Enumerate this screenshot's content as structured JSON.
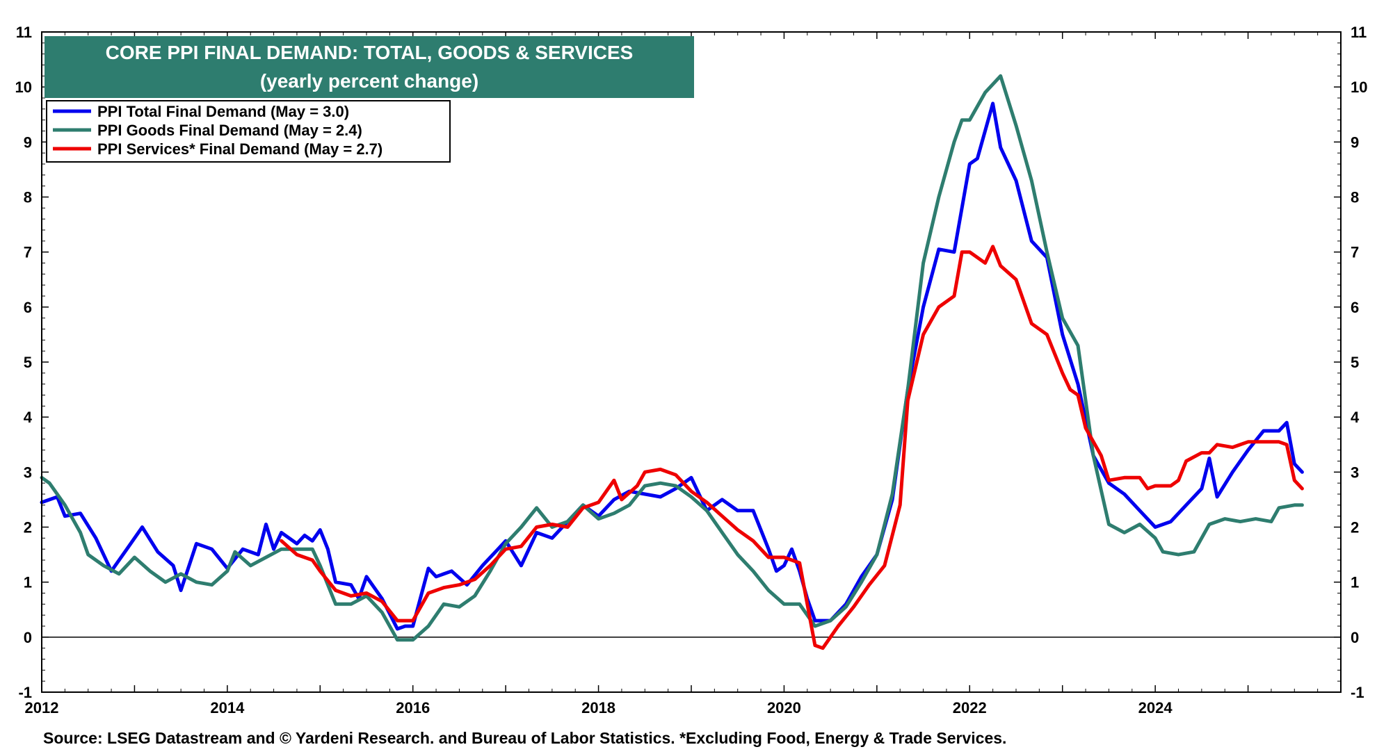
{
  "chart_data": {
    "type": "line",
    "title": "CORE PPI FINAL DEMAND: TOTAL, GOODS & SERVICES",
    "subtitle": "(yearly percent change)",
    "source": "Source: LSEG Datastream and © Yardeni Research. and Bureau of Labor Statistics. *Excluding Food, Energy & Trade Services.",
    "xlim": [
      2012,
      2026
    ],
    "ylim": [
      -1,
      11
    ],
    "x_ticks": [
      2012,
      2014,
      2016,
      2018,
      2020,
      2022,
      2024
    ],
    "x_tick_labels": [
      "2012",
      "2014",
      "2016",
      "2018",
      "2020",
      "2022",
      "2024"
    ],
    "y_ticks": [
      -1,
      0,
      1,
      2,
      3,
      4,
      5,
      6,
      7,
      8,
      9,
      10,
      11
    ],
    "y_tick_labels": [
      "-1",
      "0",
      "1",
      "2",
      "3",
      "4",
      "5",
      "6",
      "7",
      "8",
      "9",
      "10",
      "11"
    ],
    "reference_line": 0,
    "legend_position": "top-left",
    "title_box_color": "#2e7d6f",
    "series": [
      {
        "name": "PPI Total Final Demand (May = 3.0)",
        "color": "#0000ee",
        "points": [
          [
            2012.0,
            2.45
          ],
          [
            2012.167,
            2.55
          ],
          [
            2012.25,
            2.2
          ],
          [
            2012.417,
            2.25
          ],
          [
            2012.583,
            1.8
          ],
          [
            2012.75,
            1.2
          ],
          [
            2012.917,
            1.6
          ],
          [
            2013.083,
            2.0
          ],
          [
            2013.25,
            1.55
          ],
          [
            2013.417,
            1.3
          ],
          [
            2013.5,
            0.85
          ],
          [
            2013.667,
            1.7
          ],
          [
            2013.833,
            1.6
          ],
          [
            2014.0,
            1.25
          ],
          [
            2014.167,
            1.6
          ],
          [
            2014.333,
            1.5
          ],
          [
            2014.417,
            2.05
          ],
          [
            2014.5,
            1.6
          ],
          [
            2014.583,
            1.9
          ],
          [
            2014.75,
            1.7
          ],
          [
            2014.833,
            1.85
          ],
          [
            2014.917,
            1.75
          ],
          [
            2015.0,
            1.95
          ],
          [
            2015.083,
            1.6
          ],
          [
            2015.167,
            1.0
          ],
          [
            2015.333,
            0.95
          ],
          [
            2015.417,
            0.7
          ],
          [
            2015.5,
            1.1
          ],
          [
            2015.667,
            0.7
          ],
          [
            2015.833,
            0.15
          ],
          [
            2015.917,
            0.2
          ],
          [
            2016.0,
            0.2
          ],
          [
            2016.167,
            1.25
          ],
          [
            2016.25,
            1.1
          ],
          [
            2016.417,
            1.2
          ],
          [
            2016.583,
            0.95
          ],
          [
            2016.75,
            1.3
          ],
          [
            2016.917,
            1.6
          ],
          [
            2017.0,
            1.75
          ],
          [
            2017.167,
            1.3
          ],
          [
            2017.333,
            1.9
          ],
          [
            2017.5,
            1.8
          ],
          [
            2017.667,
            2.1
          ],
          [
            2017.833,
            2.4
          ],
          [
            2018.0,
            2.2
          ],
          [
            2018.167,
            2.5
          ],
          [
            2018.333,
            2.65
          ],
          [
            2018.5,
            2.6
          ],
          [
            2018.667,
            2.55
          ],
          [
            2018.833,
            2.7
          ],
          [
            2019.0,
            2.9
          ],
          [
            2019.167,
            2.3
          ],
          [
            2019.333,
            2.5
          ],
          [
            2019.5,
            2.3
          ],
          [
            2019.667,
            2.3
          ],
          [
            2019.833,
            1.6
          ],
          [
            2019.917,
            1.2
          ],
          [
            2020.0,
            1.3
          ],
          [
            2020.083,
            1.6
          ],
          [
            2020.167,
            1.2
          ],
          [
            2020.25,
            0.7
          ],
          [
            2020.333,
            0.3
          ],
          [
            2020.5,
            0.3
          ],
          [
            2020.667,
            0.6
          ],
          [
            2020.833,
            1.1
          ],
          [
            2021.0,
            1.5
          ],
          [
            2021.167,
            2.5
          ],
          [
            2021.333,
            4.5
          ],
          [
            2021.5,
            6.0
          ],
          [
            2021.667,
            7.05
          ],
          [
            2021.833,
            7.0
          ],
          [
            2022.0,
            8.6
          ],
          [
            2022.083,
            8.7
          ],
          [
            2022.25,
            9.7
          ],
          [
            2022.333,
            8.9
          ],
          [
            2022.5,
            8.3
          ],
          [
            2022.667,
            7.2
          ],
          [
            2022.833,
            6.9
          ],
          [
            2023.0,
            5.5
          ],
          [
            2023.167,
            4.6
          ],
          [
            2023.333,
            3.3
          ],
          [
            2023.5,
            2.8
          ],
          [
            2023.667,
            2.6
          ],
          [
            2023.833,
            2.3
          ],
          [
            2024.0,
            2.0
          ],
          [
            2024.167,
            2.1
          ],
          [
            2024.333,
            2.4
          ],
          [
            2024.5,
            2.7
          ],
          [
            2024.583,
            3.25
          ],
          [
            2024.667,
            2.55
          ],
          [
            2024.833,
            3.0
          ],
          [
            2025.0,
            3.4
          ],
          [
            2025.167,
            3.75
          ],
          [
            2025.333,
            3.75
          ],
          [
            2025.417,
            3.9
          ],
          [
            2025.5,
            3.15
          ],
          [
            2025.583,
            3.0
          ]
        ]
      },
      {
        "name": "PPI Goods Final Demand (May = 2.4)",
        "color": "#2e7d6f",
        "points": [
          [
            2012.0,
            2.9
          ],
          [
            2012.083,
            2.8
          ],
          [
            2012.25,
            2.4
          ],
          [
            2012.417,
            1.9
          ],
          [
            2012.5,
            1.5
          ],
          [
            2012.667,
            1.3
          ],
          [
            2012.833,
            1.15
          ],
          [
            2013.0,
            1.45
          ],
          [
            2013.167,
            1.2
          ],
          [
            2013.333,
            1.0
          ],
          [
            2013.5,
            1.15
          ],
          [
            2013.667,
            1.0
          ],
          [
            2013.833,
            0.95
          ],
          [
            2014.0,
            1.2
          ],
          [
            2014.083,
            1.55
          ],
          [
            2014.25,
            1.3
          ],
          [
            2014.417,
            1.45
          ],
          [
            2014.583,
            1.6
          ],
          [
            2014.75,
            1.6
          ],
          [
            2014.917,
            1.6
          ],
          [
            2015.0,
            1.3
          ],
          [
            2015.167,
            0.6
          ],
          [
            2015.333,
            0.6
          ],
          [
            2015.5,
            0.75
          ],
          [
            2015.667,
            0.45
          ],
          [
            2015.833,
            -0.05
          ],
          [
            2016.0,
            -0.05
          ],
          [
            2016.167,
            0.2
          ],
          [
            2016.333,
            0.6
          ],
          [
            2016.5,
            0.55
          ],
          [
            2016.667,
            0.75
          ],
          [
            2016.833,
            1.2
          ],
          [
            2017.0,
            1.7
          ],
          [
            2017.167,
            2.0
          ],
          [
            2017.333,
            2.35
          ],
          [
            2017.5,
            2.0
          ],
          [
            2017.667,
            2.1
          ],
          [
            2017.833,
            2.4
          ],
          [
            2018.0,
            2.15
          ],
          [
            2018.167,
            2.25
          ],
          [
            2018.333,
            2.4
          ],
          [
            2018.5,
            2.75
          ],
          [
            2018.667,
            2.8
          ],
          [
            2018.833,
            2.75
          ],
          [
            2019.0,
            2.55
          ],
          [
            2019.167,
            2.3
          ],
          [
            2019.333,
            1.9
          ],
          [
            2019.5,
            1.5
          ],
          [
            2019.667,
            1.2
          ],
          [
            2019.833,
            0.85
          ],
          [
            2020.0,
            0.6
          ],
          [
            2020.167,
            0.6
          ],
          [
            2020.25,
            0.4
          ],
          [
            2020.333,
            0.2
          ],
          [
            2020.5,
            0.3
          ],
          [
            2020.667,
            0.55
          ],
          [
            2020.833,
            1.0
          ],
          [
            2021.0,
            1.5
          ],
          [
            2021.167,
            2.6
          ],
          [
            2021.333,
            4.5
          ],
          [
            2021.5,
            6.8
          ],
          [
            2021.667,
            8.0
          ],
          [
            2021.833,
            9.0
          ],
          [
            2021.917,
            9.4
          ],
          [
            2022.0,
            9.4
          ],
          [
            2022.167,
            9.9
          ],
          [
            2022.333,
            10.2
          ],
          [
            2022.5,
            9.3
          ],
          [
            2022.667,
            8.3
          ],
          [
            2022.833,
            7.0
          ],
          [
            2023.0,
            5.8
          ],
          [
            2023.167,
            5.3
          ],
          [
            2023.333,
            3.3
          ],
          [
            2023.5,
            2.05
          ],
          [
            2023.667,
            1.9
          ],
          [
            2023.833,
            2.05
          ],
          [
            2024.0,
            1.8
          ],
          [
            2024.083,
            1.55
          ],
          [
            2024.25,
            1.5
          ],
          [
            2024.417,
            1.55
          ],
          [
            2024.583,
            2.05
          ],
          [
            2024.75,
            2.15
          ],
          [
            2024.917,
            2.1
          ],
          [
            2025.083,
            2.15
          ],
          [
            2025.25,
            2.1
          ],
          [
            2025.333,
            2.35
          ],
          [
            2025.5,
            2.4
          ],
          [
            2025.583,
            2.4
          ]
        ]
      },
      {
        "name": "PPI Services* Final Demand (May = 2.7)",
        "color": "#ee0000",
        "points": [
          [
            2014.583,
            1.75
          ],
          [
            2014.75,
            1.5
          ],
          [
            2014.917,
            1.4
          ],
          [
            2015.0,
            1.2
          ],
          [
            2015.167,
            0.85
          ],
          [
            2015.333,
            0.75
          ],
          [
            2015.5,
            0.8
          ],
          [
            2015.667,
            0.65
          ],
          [
            2015.833,
            0.3
          ],
          [
            2016.0,
            0.3
          ],
          [
            2016.167,
            0.8
          ],
          [
            2016.333,
            0.9
          ],
          [
            2016.5,
            0.95
          ],
          [
            2016.667,
            1.05
          ],
          [
            2016.833,
            1.3
          ],
          [
            2017.0,
            1.6
          ],
          [
            2017.167,
            1.65
          ],
          [
            2017.333,
            2.0
          ],
          [
            2017.5,
            2.05
          ],
          [
            2017.667,
            2.0
          ],
          [
            2017.833,
            2.35
          ],
          [
            2018.0,
            2.45
          ],
          [
            2018.167,
            2.85
          ],
          [
            2018.25,
            2.5
          ],
          [
            2018.417,
            2.75
          ],
          [
            2018.5,
            3.0
          ],
          [
            2018.667,
            3.05
          ],
          [
            2018.833,
            2.95
          ],
          [
            2019.0,
            2.65
          ],
          [
            2019.167,
            2.45
          ],
          [
            2019.333,
            2.2
          ],
          [
            2019.5,
            1.95
          ],
          [
            2019.667,
            1.75
          ],
          [
            2019.833,
            1.45
          ],
          [
            2020.0,
            1.45
          ],
          [
            2020.167,
            1.35
          ],
          [
            2020.25,
            0.6
          ],
          [
            2020.333,
            -0.15
          ],
          [
            2020.417,
            -0.2
          ],
          [
            2020.583,
            0.2
          ],
          [
            2020.75,
            0.55
          ],
          [
            2020.917,
            0.95
          ],
          [
            2021.083,
            1.3
          ],
          [
            2021.25,
            2.4
          ],
          [
            2021.333,
            4.3
          ],
          [
            2021.5,
            5.5
          ],
          [
            2021.667,
            6.0
          ],
          [
            2021.833,
            6.2
          ],
          [
            2021.917,
            7.0
          ],
          [
            2022.0,
            7.0
          ],
          [
            2022.167,
            6.8
          ],
          [
            2022.25,
            7.1
          ],
          [
            2022.333,
            6.75
          ],
          [
            2022.5,
            6.5
          ],
          [
            2022.667,
            5.7
          ],
          [
            2022.833,
            5.5
          ],
          [
            2023.0,
            4.8
          ],
          [
            2023.083,
            4.5
          ],
          [
            2023.167,
            4.4
          ],
          [
            2023.25,
            3.8
          ],
          [
            2023.417,
            3.3
          ],
          [
            2023.5,
            2.85
          ],
          [
            2023.667,
            2.9
          ],
          [
            2023.833,
            2.9
          ],
          [
            2023.917,
            2.7
          ],
          [
            2024.0,
            2.75
          ],
          [
            2024.167,
            2.75
          ],
          [
            2024.25,
            2.85
          ],
          [
            2024.333,
            3.2
          ],
          [
            2024.5,
            3.35
          ],
          [
            2024.583,
            3.35
          ],
          [
            2024.667,
            3.5
          ],
          [
            2024.833,
            3.45
          ],
          [
            2025.0,
            3.55
          ],
          [
            2025.167,
            3.55
          ],
          [
            2025.333,
            3.55
          ],
          [
            2025.417,
            3.5
          ],
          [
            2025.5,
            2.85
          ],
          [
            2025.583,
            2.7
          ]
        ]
      }
    ]
  }
}
